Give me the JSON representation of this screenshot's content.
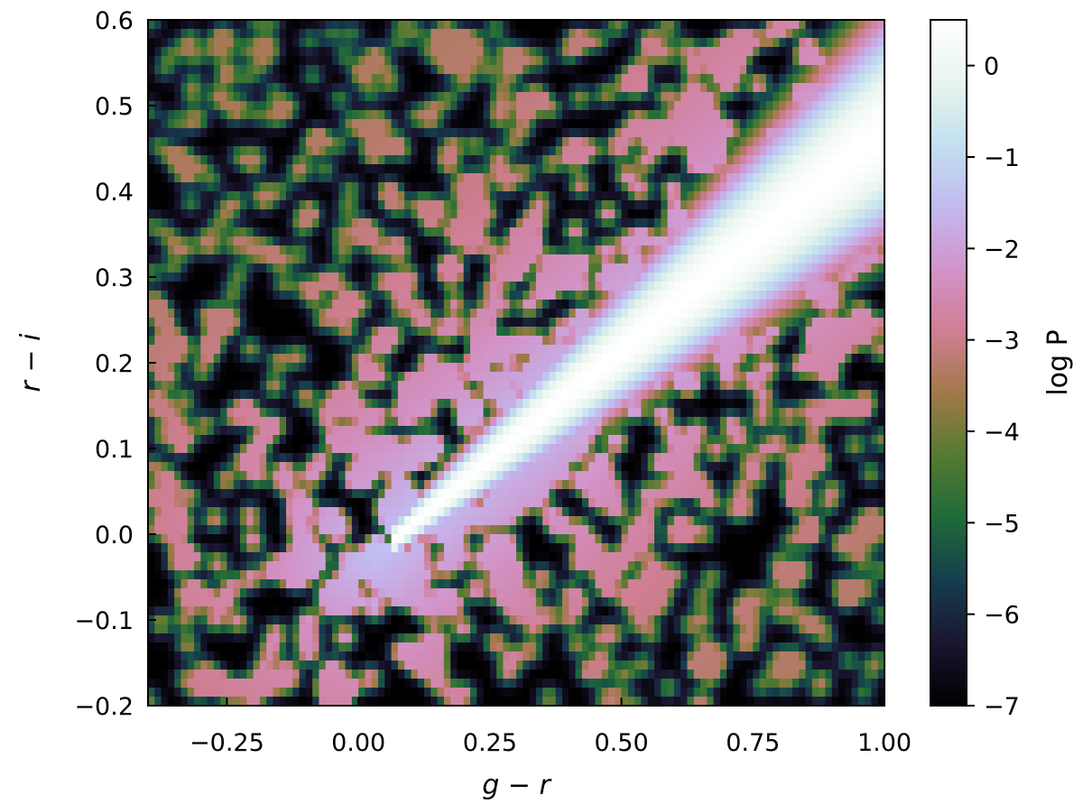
{
  "chart_data": {
    "type": "heatmap",
    "title": "",
    "xlabel": "g − r",
    "ylabel": "r − i",
    "xlim": [
      -0.4,
      1.0
    ],
    "ylim": [
      -0.2,
      0.6
    ],
    "x_ticks": [
      -0.25,
      0.0,
      0.25,
      0.5,
      0.75,
      1.0
    ],
    "x_tick_labels": [
      "−0.25",
      "0.00",
      "0.25",
      "0.50",
      "0.75",
      "1.00"
    ],
    "y_ticks": [
      -0.2,
      -0.1,
      0.0,
      0.1,
      0.2,
      0.3,
      0.4,
      0.5,
      0.6
    ],
    "y_tick_labels": [
      "−0.2",
      "−0.1",
      "0.0",
      "0.1",
      "0.2",
      "0.3",
      "0.4",
      "0.5",
      "0.6"
    ],
    "grid": false,
    "colorbar": {
      "label": "log P",
      "range": [
        -7,
        0.5
      ],
      "ticks": [
        0,
        -1,
        -2,
        -3,
        -4,
        -5,
        -6,
        -7
      ],
      "tick_labels": [
        "0",
        "−1",
        "−2",
        "−3",
        "−4",
        "−5",
        "−6",
        "−7"
      ],
      "colormap": "cubehelix",
      "colors": [
        "#000000",
        "#1a1530",
        "#163d4e",
        "#1f6a3a",
        "#547a30",
        "#a07949",
        "#d07e93",
        "#d293c8",
        "#c2b9f0",
        "#c2e0ef",
        "#e8f5ee",
        "#ffffff"
      ]
    },
    "density_ridge": {
      "description_free": true,
      "start": [
        0.08,
        0.0
      ],
      "end": [
        1.0,
        0.47
      ],
      "peak_log_p": 0.5,
      "background_log_p": -7
    }
  }
}
